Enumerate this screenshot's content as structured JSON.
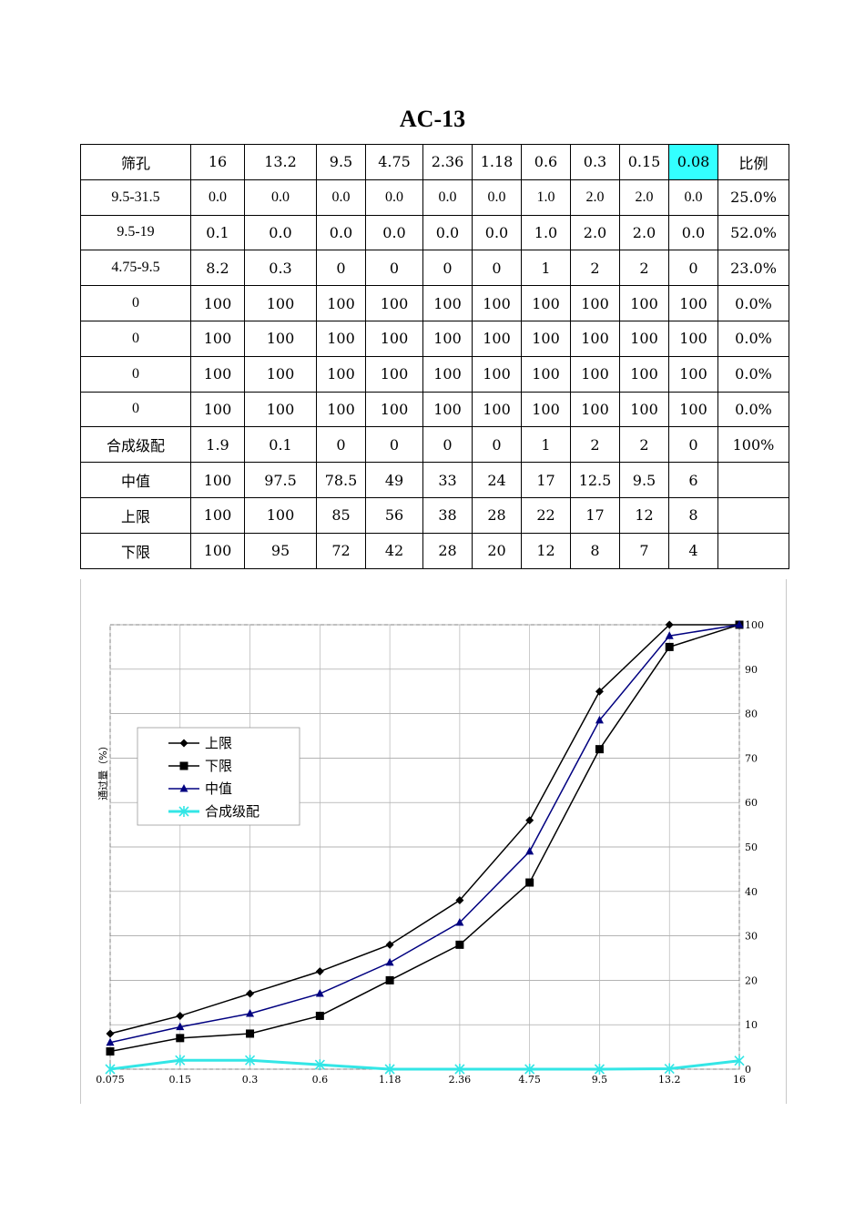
{
  "title": "AC-13",
  "table": {
    "header": [
      "筛孔",
      "16",
      "13.2",
      "9.5",
      "4.75",
      "2.36",
      "1.18",
      "0.6",
      "0.3",
      "0.15",
      "0.08",
      "比例"
    ],
    "rows": [
      {
        "label": "9.5-31.5",
        "values": [
          "0.0",
          "0.0",
          "0.0",
          "0.0",
          "0.0",
          "0.0",
          "1.0",
          "2.0",
          "2.0",
          "0.0"
        ],
        "ratio": "25.0%"
      },
      {
        "label": "9.5-19",
        "values": [
          "0.1",
          "0.0",
          "0.0",
          "0.0",
          "0.0",
          "0.0",
          "1.0",
          "2.0",
          "2.0",
          "0.0"
        ],
        "ratio": "52.0%"
      },
      {
        "label": "4.75-9.5",
        "values": [
          "8.2",
          "0.3",
          "0",
          "0",
          "0",
          "0",
          "1",
          "2",
          "2",
          "0"
        ],
        "ratio": "23.0%"
      },
      {
        "label": "0",
        "values": [
          "100",
          "100",
          "100",
          "100",
          "100",
          "100",
          "100",
          "100",
          "100",
          "100"
        ],
        "ratio": "0.0%"
      },
      {
        "label": "0",
        "values": [
          "100",
          "100",
          "100",
          "100",
          "100",
          "100",
          "100",
          "100",
          "100",
          "100"
        ],
        "ratio": "0.0%"
      },
      {
        "label": "0",
        "values": [
          "100",
          "100",
          "100",
          "100",
          "100",
          "100",
          "100",
          "100",
          "100",
          "100"
        ],
        "ratio": "0.0%"
      },
      {
        "label": "0",
        "values": [
          "100",
          "100",
          "100",
          "100",
          "100",
          "100",
          "100",
          "100",
          "100",
          "100"
        ],
        "ratio": "0.0%"
      },
      {
        "label": "合成级配",
        "values": [
          "1.9",
          "0.1",
          "0",
          "0",
          "0",
          "0",
          "1",
          "2",
          "2",
          "0"
        ],
        "ratio": "100%"
      },
      {
        "label": "中值",
        "values": [
          "100",
          "97.5",
          "78.5",
          "49",
          "33",
          "24",
          "17",
          "12.5",
          "9.5",
          "6"
        ],
        "ratio": ""
      },
      {
        "label": "上限",
        "values": [
          "100",
          "100",
          "85",
          "56",
          "38",
          "28",
          "22",
          "17",
          "12",
          "8"
        ],
        "ratio": ""
      },
      {
        "label": "下限",
        "values": [
          "100",
          "95",
          "72",
          "42",
          "28",
          "20",
          "12",
          "8",
          "7",
          "4"
        ],
        "ratio": ""
      }
    ]
  },
  "chart_data": {
    "type": "line",
    "title": "",
    "xlabel": "",
    "ylabel": "通过量（%）",
    "categories": [
      "0.075",
      "0.15",
      "0.3",
      "0.6",
      "1.18",
      "2.36",
      "4.75",
      "9.5",
      "13.2",
      "16"
    ],
    "ylim": [
      0,
      100
    ],
    "yticks": [
      0,
      10,
      20,
      30,
      40,
      50,
      60,
      70,
      80,
      90,
      100
    ],
    "grid": true,
    "legend_position": "upper-left",
    "series": [
      {
        "name": "上限",
        "color": "#000000",
        "marker": "diamond",
        "values": [
          8,
          12,
          17,
          22,
          28,
          38,
          56,
          85,
          100,
          100
        ]
      },
      {
        "name": "下限",
        "color": "#000000",
        "marker": "square",
        "values": [
          4,
          7,
          8,
          12,
          20,
          28,
          42,
          72,
          95,
          100
        ]
      },
      {
        "name": "中值",
        "color": "#000080",
        "marker": "triangle",
        "values": [
          6,
          9.5,
          12.5,
          17,
          24,
          33,
          49,
          78.5,
          97.5,
          100
        ]
      },
      {
        "name": "合成级配",
        "color": "#33e6e6",
        "marker": "x",
        "values": [
          0,
          2,
          2,
          1,
          0,
          0,
          0,
          0,
          0.1,
          1.9
        ]
      }
    ]
  }
}
